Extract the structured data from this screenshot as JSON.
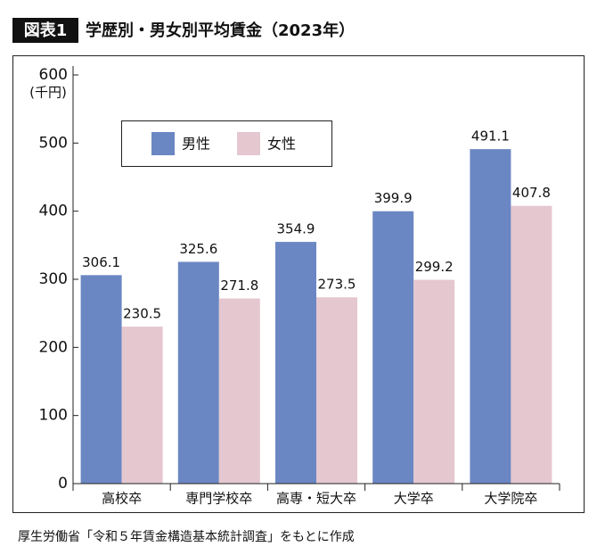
{
  "chart_data": {
    "type": "bar",
    "figure_label": "図表1",
    "title": "学歴別・男女別平均賃金（2023年）",
    "y_unit": "(千円)",
    "source": "厚生労働省「令和５年賃金構造基本統計調査」をもとに作成",
    "categories": [
      "高校卒",
      "専門学校卒",
      "高専・短大卒",
      "大学卒",
      "大学院卒"
    ],
    "series": [
      {
        "name": "男性",
        "color": "#6b87c3",
        "values": [
          306.1,
          325.6,
          354.9,
          399.9,
          491.1
        ]
      },
      {
        "name": "女性",
        "color": "#e5c7d0",
        "values": [
          230.5,
          271.8,
          273.5,
          299.2,
          407.8
        ]
      }
    ],
    "ylim": [
      0,
      600
    ],
    "yticks": [
      0,
      100,
      200,
      300,
      400,
      500,
      600
    ],
    "grid": false,
    "legend": "upper left"
  }
}
